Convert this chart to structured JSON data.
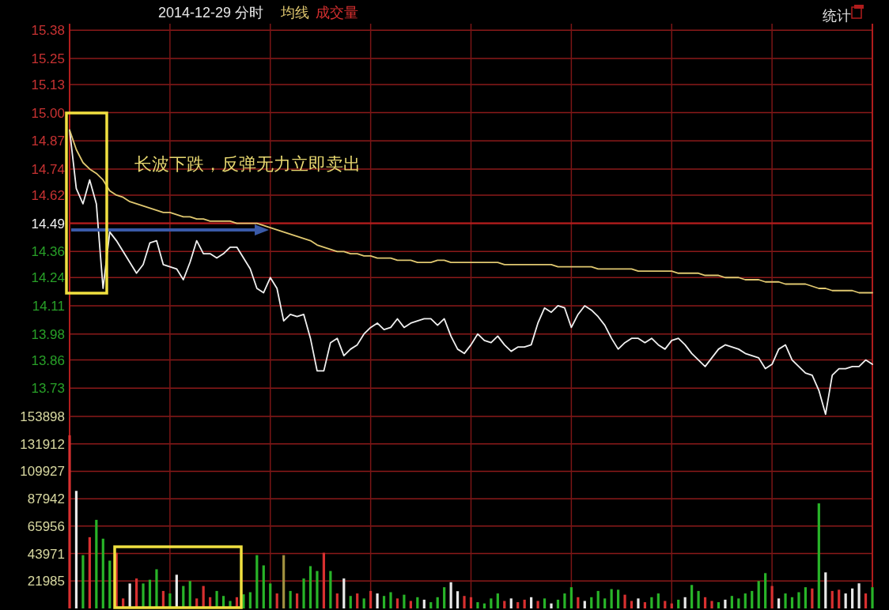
{
  "chart_data": [
    {
      "type": "line",
      "title": "2014-12-29 分时",
      "categories": [
        null,
        null,
        null,
        null,
        null,
        null,
        null,
        null,
        null,
        null,
        null,
        null,
        null,
        null,
        null,
        null,
        null,
        null,
        null,
        null,
        null,
        null,
        null,
        null,
        null,
        null,
        null,
        null,
        null,
        null,
        null,
        null,
        null,
        null,
        null,
        null,
        null,
        null,
        null,
        null,
        null,
        null,
        null,
        null,
        null,
        null,
        null,
        null,
        null,
        null,
        null,
        null,
        null,
        null,
        null,
        null,
        null,
        null,
        null,
        null,
        null,
        null,
        null,
        null,
        null,
        null,
        null,
        null,
        null,
        null,
        null,
        null,
        null,
        null,
        null,
        null,
        null,
        null,
        null,
        null,
        null,
        null,
        null,
        null,
        null,
        null,
        null,
        null,
        null,
        null,
        null,
        null,
        null,
        null,
        null,
        null,
        null,
        null,
        null,
        null,
        null,
        null,
        null,
        null,
        null,
        null,
        null,
        null,
        null,
        null,
        null,
        null,
        null,
        null,
        null,
        null,
        null,
        null,
        null,
        null,
        null
      ],
      "ylim": [
        13.6,
        15.41
      ],
      "yticks": [
        13.73,
        13.86,
        13.98,
        14.11,
        14.24,
        14.36,
        14.49,
        14.62,
        14.74,
        14.87,
        {
          "value": 15.0,
          "label": "15.00"
        },
        15.13,
        15.25,
        15.38
      ],
      "grid": true,
      "ref_lines": [
        {
          "axis": "y",
          "value": 14.49,
          "color": "#b01c1c"
        }
      ],
      "annotations": [
        "长波下跌，反弹无力立即卖出",
        "统计"
      ],
      "series": [
        {
          "color": "#f0f0f0",
          "values": [
            14.92,
            14.65,
            14.58,
            14.69,
            14.58,
            14.19,
            14.45,
            14.41,
            14.36,
            14.31,
            14.26,
            14.3,
            14.4,
            14.41,
            14.3,
            14.29,
            14.28,
            14.23,
            14.31,
            14.41,
            14.35,
            14.35,
            14.33,
            14.35,
            14.38,
            14.38,
            14.33,
            14.28,
            14.19,
            14.17,
            14.24,
            14.19,
            14.04,
            14.07,
            14.06,
            14.07,
            13.96,
            13.81,
            13.81,
            13.94,
            13.96,
            13.88,
            13.91,
            13.93,
            13.98,
            14.01,
            14.03,
            14.0,
            14.01,
            14.05,
            14.01,
            14.03,
            14.04,
            14.05,
            14.05,
            14.02,
            14.05,
            13.97,
            13.91,
            13.89,
            13.93,
            13.98,
            13.95,
            13.94,
            13.97,
            13.93,
            13.9,
            13.92,
            13.92,
            13.93,
            14.03,
            14.1,
            14.08,
            14.11,
            14.1,
            14.01,
            14.07,
            14.11,
            14.09,
            14.06,
            14.02,
            13.96,
            13.91,
            13.94,
            13.96,
            13.96,
            13.94,
            13.96,
            13.93,
            13.91,
            13.95,
            13.96,
            13.93,
            13.89,
            13.86,
            13.83,
            13.87,
            13.91,
            13.93,
            13.92,
            13.91,
            13.89,
            13.88,
            13.87,
            13.82,
            13.84,
            13.91,
            13.93,
            13.86,
            13.83,
            13.8,
            13.79,
            13.72,
            13.61,
            13.79,
            13.82,
            13.82,
            13.83,
            13.83,
            13.86,
            13.84
          ]
        },
        {
          "name": "均线",
          "color": "#e0c870",
          "values": [
            14.92,
            14.83,
            14.77,
            14.74,
            14.72,
            14.69,
            14.64,
            14.62,
            14.61,
            14.59,
            14.58,
            14.57,
            14.56,
            14.55,
            14.54,
            14.54,
            14.53,
            14.52,
            14.52,
            14.51,
            14.51,
            14.5,
            14.5,
            14.5,
            14.5,
            14.49,
            14.49,
            14.49,
            14.49,
            14.48,
            14.47,
            14.46,
            14.45,
            14.44,
            14.43,
            14.42,
            14.41,
            14.39,
            14.38,
            14.37,
            14.36,
            14.36,
            14.35,
            14.35,
            14.34,
            14.34,
            14.33,
            14.33,
            14.33,
            14.32,
            14.32,
            14.32,
            14.31,
            14.31,
            14.31,
            14.32,
            14.32,
            14.31,
            14.31,
            14.31,
            14.31,
            14.31,
            14.31,
            14.31,
            14.31,
            14.3,
            14.3,
            14.3,
            14.3,
            14.3,
            14.3,
            14.3,
            14.3,
            14.29,
            14.29,
            14.29,
            14.29,
            14.29,
            14.29,
            14.28,
            14.28,
            14.28,
            14.28,
            14.28,
            14.28,
            14.27,
            14.27,
            14.27,
            14.27,
            14.27,
            14.27,
            14.26,
            14.26,
            14.26,
            14.26,
            14.25,
            14.25,
            14.25,
            14.24,
            14.24,
            14.24,
            14.23,
            14.23,
            14.23,
            14.22,
            14.22,
            14.22,
            14.21,
            14.21,
            14.21,
            14.21,
            14.2,
            14.19,
            14.19,
            14.18,
            14.18,
            14.18,
            14.18,
            14.17,
            14.17,
            14.17
          ]
        }
      ]
    },
    {
      "type": "bar",
      "categories": [
        null,
        null,
        null,
        null,
        null,
        null,
        null,
        null,
        null,
        null,
        null,
        null,
        null,
        null,
        null,
        null,
        null,
        null,
        null,
        null,
        null,
        null,
        null,
        null,
        null,
        null,
        null,
        null,
        null,
        null,
        null,
        null,
        null,
        null,
        null,
        null,
        null,
        null,
        null,
        null,
        null,
        null,
        null,
        null,
        null,
        null,
        null,
        null,
        null,
        null,
        null,
        null,
        null,
        null,
        null,
        null,
        null,
        null,
        null,
        null,
        null,
        null,
        null,
        null,
        null,
        null,
        null,
        null,
        null,
        null,
        null,
        null,
        null,
        null,
        null,
        null,
        null,
        null,
        null,
        null,
        null,
        null,
        null,
        null,
        null,
        null,
        null,
        null,
        null,
        null,
        null,
        null,
        null,
        null,
        null,
        null,
        null,
        null,
        null,
        null,
        null,
        null,
        null,
        null,
        null,
        null,
        null,
        null,
        null,
        null,
        null,
        null,
        null,
        null,
        null,
        null,
        null,
        null,
        null,
        null,
        null
      ],
      "ylim": [
        0,
        153898
      ],
      "yticks": [
        21985,
        43971,
        65956,
        87942,
        109927,
        131912,
        153898
      ],
      "grid": true,
      "series": [
        {
          "name": "成交量",
          "color": "#d83030",
          "values": [
            138800,
            94200,
            42700,
            57100,
            71000,
            55900,
            38300,
            44600,
            8000,
            20000,
            24000,
            20000,
            23000,
            31400,
            14000,
            12000,
            27000,
            18000,
            22000,
            8000,
            18000,
            9000,
            14000,
            10000,
            6000,
            9000,
            11300,
            13000,
            42700,
            34500,
            20000,
            12000,
            42700,
            14000,
            12000,
            24000,
            33900,
            30000,
            44600,
            30000,
            12000,
            24000,
            10000,
            12000,
            8000,
            14000,
            12000,
            10000,
            13000,
            8000,
            11000,
            6000,
            9000,
            7000,
            5000,
            9000,
            17000,
            21000,
            13800,
            10000,
            9000,
            5000,
            4000,
            8000,
            12000,
            6000,
            8000,
            5000,
            7000,
            9000,
            6000,
            8000,
            4000,
            7000,
            12000,
            17000,
            9000,
            6000,
            9000,
            14000,
            8000,
            15500,
            15000,
            11000,
            6000,
            8000,
            5000,
            9000,
            12000,
            6000,
            4000,
            7000,
            9000,
            18800,
            14000,
            9000,
            6000,
            5000,
            7000,
            10000,
            8000,
            12000,
            14000,
            22000,
            28300,
            18000,
            8000,
            12000,
            9000,
            13000,
            17000,
            16000,
            84200,
            28900,
            14000,
            15000,
            12000,
            16000,
            20100,
            12000,
            17000
          ],
          "colors": [
            "#d83030",
            "#e8e8e8",
            "#28b428",
            "#d83030",
            "#28b428",
            "#28b428",
            "#28b428",
            "#d83030",
            "#d83030",
            "#e8e8e8",
            "#d83030",
            "#28b428",
            "#28b428",
            "#28b428",
            "#d83030",
            "#28b428",
            "#e8e8e8",
            "#28b428",
            "#28b428",
            "#d83030",
            "#d83030",
            "#d83030",
            "#28b428",
            "#28b428",
            "#28b428",
            "#d83030",
            "#28b428",
            "#28b428",
            "#28b428",
            "#28b428",
            "#28b428",
            "#d83030",
            "#a09040",
            "#28b428",
            "#d83030",
            "#28b428",
            "#28b428",
            "#28b428",
            "#d83030",
            "#28b428",
            "#d83030",
            "#e8e8e8",
            "#28b428",
            "#d83030",
            "#28b428",
            "#d83030",
            "#e8e8e8",
            "#28b428",
            "#28b428",
            "#d83030",
            "#28b428",
            "#d83030",
            "#28b428",
            "#e8e8e8",
            "#28b428",
            "#28b428",
            "#28b428",
            "#e8e8e8",
            "#e8e8e8",
            "#d83030",
            "#d83030",
            "#28b428",
            "#28b428",
            "#28b428",
            "#28b428",
            "#d83030",
            "#e8e8e8",
            "#d83030",
            "#d83030",
            "#e8e8e8",
            "#d83030",
            "#28b428",
            "#e8e8e8",
            "#28b428",
            "#28b428",
            "#28b428",
            "#d83030",
            "#e8e8e8",
            "#28b428",
            "#28b428",
            "#28b428",
            "#28b428",
            "#28b428",
            "#d83030",
            "#d83030",
            "#e8e8e8",
            "#d83030",
            "#28b428",
            "#28b428",
            "#d83030",
            "#d83030",
            "#28b428",
            "#e8e8e8",
            "#28b428",
            "#28b428",
            "#d83030",
            "#d83030",
            "#28b428",
            "#e8e8e8",
            "#28b428",
            "#28b428",
            "#28b428",
            "#28b428",
            "#28b428",
            "#28b428",
            "#d83030",
            "#e8e8e8",
            "#28b428",
            "#28b428",
            "#28b428",
            "#28b428",
            "#d83030",
            "#28b428",
            "#e8e8e8",
            "#d83030",
            "#d83030",
            "#e8e8e8",
            "#e8e8e8",
            "#e8e8e8",
            "#d83030",
            "#28b428"
          ]
        }
      ]
    }
  ]
}
